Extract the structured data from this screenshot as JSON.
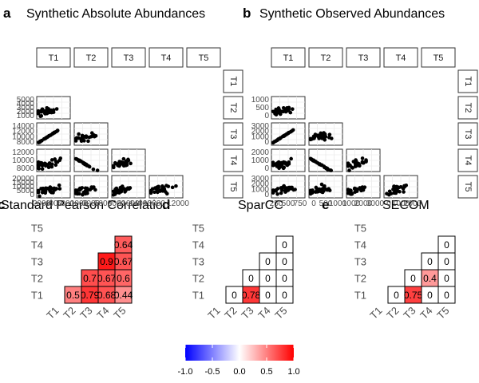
{
  "titles": {
    "a": "Synthetic Absolute Abundances",
    "b": "Synthetic Observed Abundances",
    "c": "Standard Pearson Correlation",
    "d": "SparCC",
    "e": "SECOM"
  },
  "panel_tags": {
    "a": "a",
    "b": "b",
    "c": "c",
    "d": "d",
    "e": "e"
  },
  "variables": [
    "T1",
    "T2",
    "T3",
    "T4",
    "T5"
  ],
  "legend": {
    "ticks": [
      "-1.0",
      "-0.5",
      "0.0",
      "0.5",
      "1.0"
    ],
    "tick_values": [
      -1.0,
      -0.5,
      0.0,
      0.5,
      1.0
    ],
    "low_color": "#0000ff",
    "mid_color": "#ffffff",
    "high_color": "#ff0000"
  },
  "chart_data": [
    {
      "type": "scatter",
      "title": "Synthetic Absolute Abundances",
      "description": "scatterplot matrix, lower triangle",
      "y_ticks": {
        "T2": [
          "5000",
          "4000",
          "3000",
          "2000",
          "1000"
        ],
        "T3": [
          "14000",
          "12000",
          "10000",
          "8000"
        ],
        "T4": [
          "12000",
          "10000",
          "8000"
        ],
        "T5": [
          "20000",
          "15000",
          "10000",
          "5000",
          "0"
        ]
      },
      "x_ticks": {
        "T1": [
          "2000",
          "4000",
          "6000"
        ],
        "T2": [
          "1000",
          "3000",
          "5000"
        ],
        "T3": [
          "8000",
          "11000",
          "14000"
        ],
        "T4": [
          "10000",
          "12000"
        ]
      }
    },
    {
      "type": "scatter",
      "title": "Synthetic Observed Abundances",
      "description": "scatterplot matrix, lower triangle",
      "y_ticks": {
        "T2": [
          "1000",
          "500",
          "0"
        ],
        "T3": [
          "3000",
          "2000",
          "1000",
          "0"
        ],
        "T4": [
          "2000",
          "1000",
          "0"
        ],
        "T5": [
          "3000",
          "2000",
          "1000",
          "0"
        ]
      },
      "x_ticks": {
        "T1": [
          "250",
          "500",
          "750"
        ],
        "T2": [
          "0",
          "500",
          "1000"
        ],
        "T3": [
          "1000",
          "2000",
          "3000"
        ],
        "T4": [
          "0",
          "1000",
          "2000"
        ]
      }
    },
    {
      "type": "heatmap",
      "title": "Standard Pearson Correlation",
      "x_categories": [
        "T1",
        "T2",
        "T3",
        "T4",
        "T5"
      ],
      "y_categories": [
        "T1",
        "T2",
        "T3",
        "T4",
        "T5"
      ],
      "cells": [
        {
          "x": "T2",
          "y": "T1",
          "value": 0.5,
          "label": "0.5"
        },
        {
          "x": "T3",
          "y": "T1",
          "value": 0.79,
          "label": "0.79"
        },
        {
          "x": "T4",
          "y": "T1",
          "value": 0.68,
          "label": "0.68"
        },
        {
          "x": "T5",
          "y": "T1",
          "value": 0.44,
          "label": "0.44"
        },
        {
          "x": "T3",
          "y": "T2",
          "value": 0.7,
          "label": "0.7"
        },
        {
          "x": "T4",
          "y": "T2",
          "value": 0.67,
          "label": "0.67"
        },
        {
          "x": "T5",
          "y": "T2",
          "value": 0.6,
          "label": "0.6"
        },
        {
          "x": "T4",
          "y": "T3",
          "value": 0.9,
          "label": "0.9"
        },
        {
          "x": "T5",
          "y": "T3",
          "value": 0.67,
          "label": "0.67"
        },
        {
          "x": "T5",
          "y": "T4",
          "value": 0.64,
          "label": "0.64"
        }
      ]
    },
    {
      "type": "heatmap",
      "title": "SparCC",
      "x_categories": [
        "T1",
        "T2",
        "T3",
        "T4",
        "T5"
      ],
      "y_categories": [
        "T1",
        "T2",
        "T3",
        "T4",
        "T5"
      ],
      "cells": [
        {
          "x": "T2",
          "y": "T1",
          "value": 0,
          "label": "0"
        },
        {
          "x": "T3",
          "y": "T1",
          "value": 0.78,
          "label": "0.78"
        },
        {
          "x": "T4",
          "y": "T1",
          "value": 0,
          "label": "0"
        },
        {
          "x": "T5",
          "y": "T1",
          "value": 0,
          "label": "0"
        },
        {
          "x": "T3",
          "y": "T2",
          "value": 0,
          "label": "0"
        },
        {
          "x": "T4",
          "y": "T2",
          "value": 0,
          "label": "0"
        },
        {
          "x": "T5",
          "y": "T2",
          "value": 0,
          "label": "0"
        },
        {
          "x": "T4",
          "y": "T3",
          "value": 0,
          "label": "0"
        },
        {
          "x": "T5",
          "y": "T3",
          "value": 0,
          "label": "0"
        },
        {
          "x": "T5",
          "y": "T4",
          "value": 0,
          "label": "0"
        }
      ]
    },
    {
      "type": "heatmap",
      "title": "SECOM",
      "x_categories": [
        "T1",
        "T2",
        "T3",
        "T4",
        "T5"
      ],
      "y_categories": [
        "T1",
        "T2",
        "T3",
        "T4",
        "T5"
      ],
      "cells": [
        {
          "x": "T2",
          "y": "T1",
          "value": 0,
          "label": "0"
        },
        {
          "x": "T3",
          "y": "T1",
          "value": 0.75,
          "label": "0.75"
        },
        {
          "x": "T4",
          "y": "T1",
          "value": 0,
          "label": "0"
        },
        {
          "x": "T5",
          "y": "T1",
          "value": 0,
          "label": "0"
        },
        {
          "x": "T3",
          "y": "T2",
          "value": 0,
          "label": "0"
        },
        {
          "x": "T4",
          "y": "T2",
          "value": 0.4,
          "label": "0.4"
        },
        {
          "x": "T5",
          "y": "T2",
          "value": 0,
          "label": "0"
        },
        {
          "x": "T4",
          "y": "T3",
          "value": 0,
          "label": "0"
        },
        {
          "x": "T5",
          "y": "T3",
          "value": 0,
          "label": "0"
        },
        {
          "x": "T5",
          "y": "T4",
          "value": 0,
          "label": "0"
        }
      ]
    }
  ]
}
